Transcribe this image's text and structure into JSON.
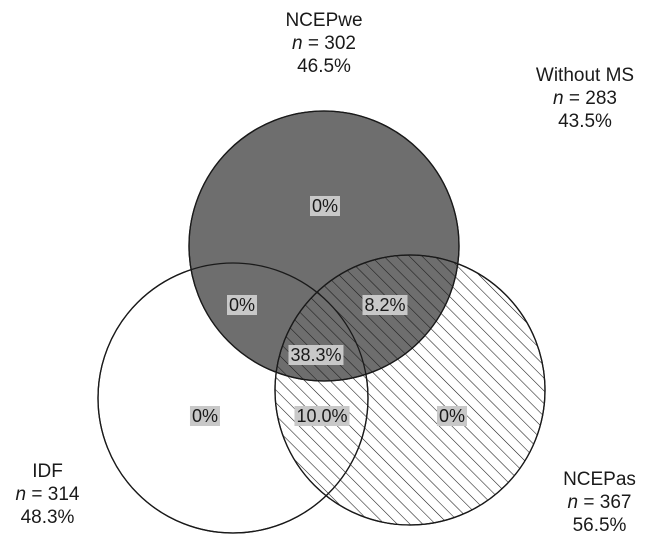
{
  "sets": {
    "ncepwe": {
      "name": "NCEPwe",
      "n_label": "n",
      "n_value": "= 302",
      "pct": "46.5%"
    },
    "without_ms": {
      "name": "Without MS",
      "n_label": "n",
      "n_value": "= 283",
      "pct": "43.5%"
    },
    "idf": {
      "name": "IDF",
      "n_label": "n",
      "n_value": "= 314",
      "pct": "48.3%"
    },
    "nceppas": {
      "name": "NCEPas",
      "n_label": "n",
      "n_value": "= 367",
      "pct": "56.5%"
    }
  },
  "regions": {
    "ncepwe_only": "0%",
    "ncepwe_idf": "0%",
    "ncepwe_nceppas": "8.2%",
    "all_three": "38.3%",
    "idf_only": "0%",
    "idf_nceppas": "10.0%",
    "nceppas_only": "0%"
  },
  "colors": {
    "ncepwe_fill": "#6e6e6e",
    "label_bg": "#c8c8c8",
    "outline": "#1a1a1a"
  }
}
